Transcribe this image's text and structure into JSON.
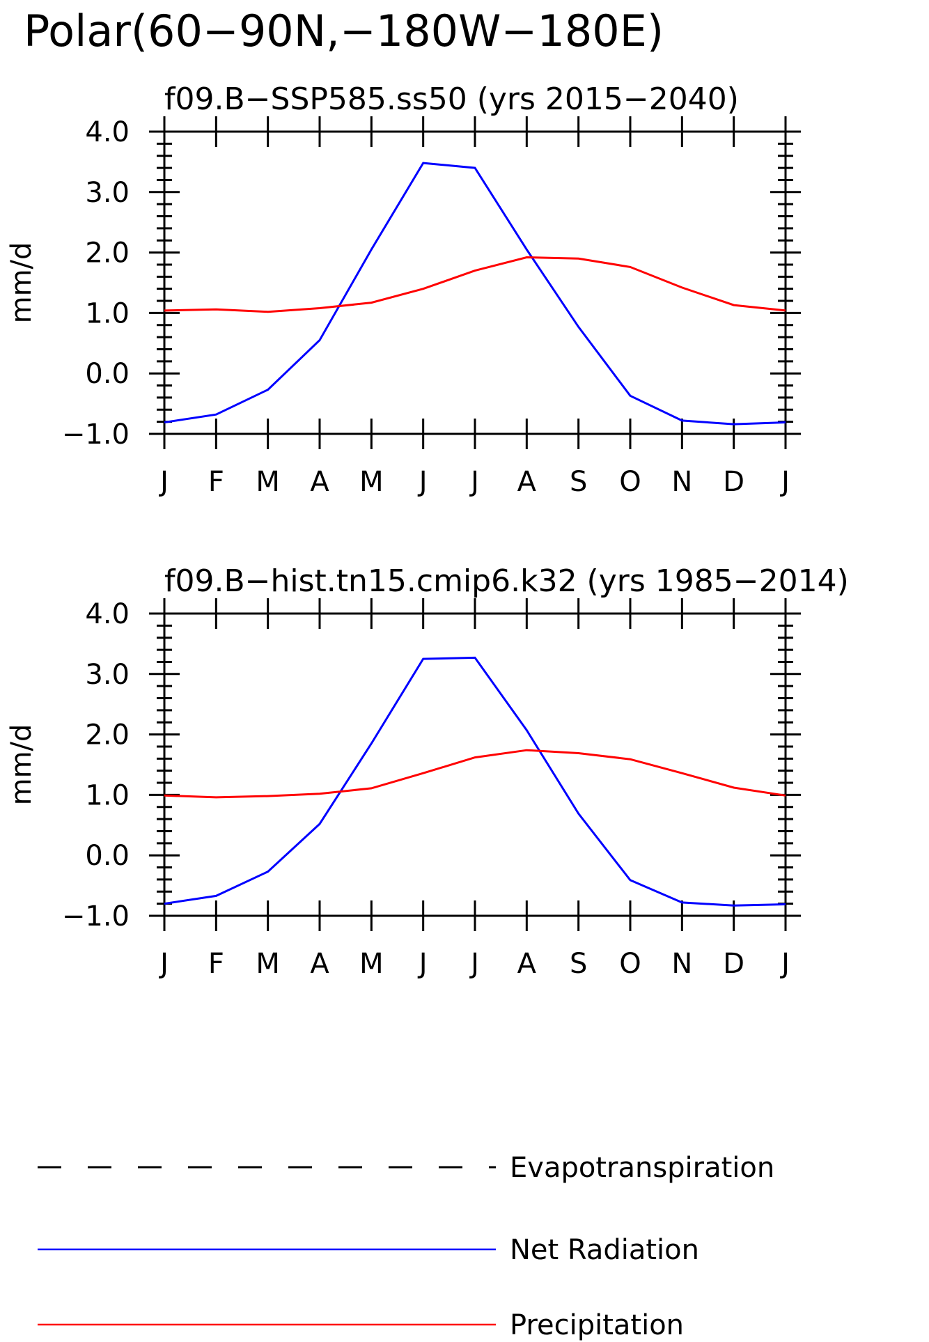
{
  "figure": {
    "title": "Polar(60−90N,−180W−180E)"
  },
  "colors": {
    "net_radiation": "#0000ff",
    "precipitation": "#ff0000",
    "evapotranspiration": "#000000"
  },
  "legend": {
    "items": [
      {
        "label": "Evapotranspiration",
        "style": "dashed",
        "color_key": "evapotranspiration"
      },
      {
        "label": "Net Radiation",
        "style": "solid",
        "color_key": "net_radiation"
      },
      {
        "label": "Precipitation",
        "style": "solid",
        "color_key": "precipitation"
      }
    ]
  },
  "chart_data": [
    {
      "type": "line",
      "title": "f09.B−SSP585.ss50 (yrs 2015−2040)",
      "xlabel": "",
      "ylabel": "mm/d",
      "categories": [
        "J",
        "F",
        "M",
        "A",
        "M",
        "J",
        "J",
        "A",
        "S",
        "O",
        "N",
        "D",
        "J"
      ],
      "ylim": [
        -1.0,
        4.0
      ],
      "yticks": [
        -1.0,
        0.0,
        1.0,
        2.0,
        3.0,
        4.0
      ],
      "ytick_labels": [
        "−1.0",
        "0.0",
        "1.0",
        "2.0",
        "3.0",
        "4.0"
      ],
      "grid": false,
      "series": [
        {
          "name": "Net Radiation",
          "color_key": "net_radiation",
          "values": [
            -0.81,
            -0.68,
            -0.27,
            0.55,
            2.05,
            3.48,
            3.4,
            2.05,
            0.77,
            -0.37,
            -0.78,
            -0.84,
            -0.81
          ]
        },
        {
          "name": "Precipitation",
          "color_key": "precipitation",
          "values": [
            1.04,
            1.06,
            1.02,
            1.08,
            1.17,
            1.4,
            1.7,
            1.92,
            1.9,
            1.76,
            1.42,
            1.13,
            1.04
          ]
        }
      ]
    },
    {
      "type": "line",
      "title": "f09.B−hist.tn15.cmip6.k32 (yrs 1985−2014)",
      "xlabel": "",
      "ylabel": "mm/d",
      "categories": [
        "J",
        "F",
        "M",
        "A",
        "M",
        "J",
        "J",
        "A",
        "S",
        "O",
        "N",
        "D",
        "J"
      ],
      "ylim": [
        -1.0,
        4.0
      ],
      "yticks": [
        -1.0,
        0.0,
        1.0,
        2.0,
        3.0,
        4.0
      ],
      "ytick_labels": [
        "−1.0",
        "0.0",
        "1.0",
        "2.0",
        "3.0",
        "4.0"
      ],
      "grid": false,
      "series": [
        {
          "name": "Net Radiation",
          "color_key": "net_radiation",
          "values": [
            -0.8,
            -0.67,
            -0.27,
            0.52,
            1.85,
            3.25,
            3.27,
            2.07,
            0.69,
            -0.41,
            -0.78,
            -0.83,
            -0.81
          ]
        },
        {
          "name": "Precipitation",
          "color_key": "precipitation",
          "values": [
            0.99,
            0.96,
            0.98,
            1.02,
            1.11,
            1.36,
            1.62,
            1.74,
            1.69,
            1.59,
            1.36,
            1.12,
            0.99
          ]
        }
      ]
    }
  ]
}
